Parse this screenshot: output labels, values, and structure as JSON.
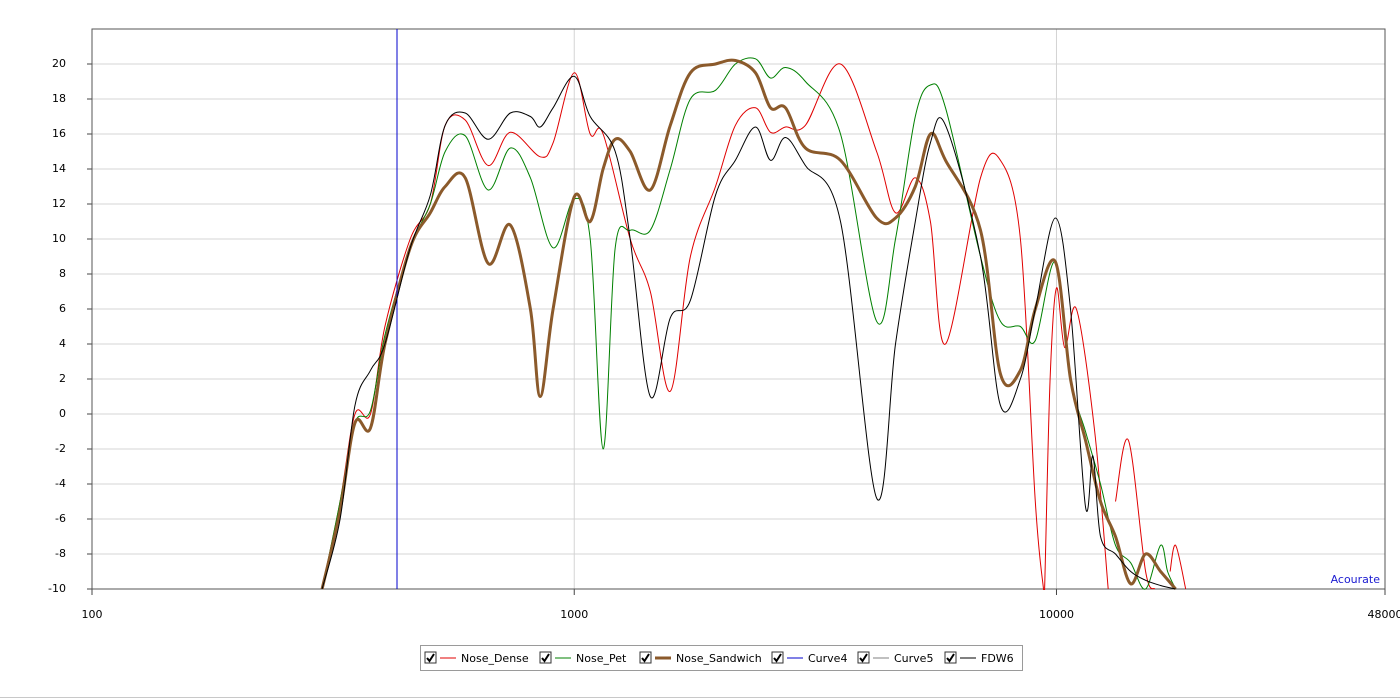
{
  "chart_data": {
    "type": "line",
    "xscale": "log",
    "grid": true,
    "legend": "bottom",
    "annotation": "Acourate",
    "xlim": [
      100,
      48000
    ],
    "ylim": [
      -10,
      22
    ],
    "xticks": [
      100,
      1000,
      10000,
      48000
    ],
    "yticks": [
      -10,
      -8,
      -6,
      -4,
      -2,
      0,
      2,
      4,
      6,
      8,
      10,
      12,
      14,
      16,
      18,
      20
    ],
    "series": [
      {
        "name": "Nose_Dense",
        "color": "#e00000",
        "width": 1,
        "x": [
          300,
          327,
          351,
          378,
          405,
          457,
          503,
          540,
          594,
          663,
          737,
          850,
          904,
          1000,
          1079,
          1148,
          1306,
          1438,
          1582,
          1741,
          1963,
          2159,
          2376,
          2553,
          2742,
          3015,
          3565,
          4236,
          4637,
          5097,
          5477,
          5888,
          6957,
          7650,
          8418,
          9038,
          9400,
          9450,
          9700,
          10000,
          10400,
          11000,
          12000,
          12800,
          13000,
          13253,
          14100,
          15302,
          16000,
          16800,
          17200,
          17660,
          18530
        ],
        "values": [
          -10,
          -5,
          0,
          0,
          5,
          10,
          12,
          16.5,
          16.8,
          14.2,
          16.1,
          14.7,
          15.5,
          19.5,
          16,
          16,
          10,
          7,
          1.3,
          9,
          13,
          16.5,
          17.5,
          16.1,
          16.4,
          16.5,
          20,
          15,
          11.5,
          13.5,
          11,
          4,
          13.5,
          14.5,
          10,
          -5,
          -10,
          -10,
          2,
          7.2,
          3.8,
          6,
          -1,
          -10,
          null,
          -5,
          -1.5,
          -9,
          -10,
          null,
          -9,
          -7.5,
          -10
        ]
      },
      {
        "name": "Nose_Pet",
        "color": "#008000",
        "width": 1,
        "x": [
          300,
          327,
          351,
          378,
          405,
          457,
          503,
          540,
          594,
          663,
          737,
          811,
          904,
          1000,
          1079,
          1148,
          1216,
          1306,
          1438,
          1582,
          1741,
          1963,
          2159,
          2376,
          2553,
          2742,
          3015,
          3565,
          4236,
          4637,
          5097,
          5477,
          5888,
          6957,
          7650,
          8418,
          9038,
          9951,
          10691,
          11487,
          12340,
          13253,
          14250,
          15302,
          16441,
          17000,
          17660
        ],
        "values": [
          -10,
          -5,
          -0.5,
          0.2,
          4.5,
          9.5,
          12,
          15,
          15.9,
          12.8,
          15.2,
          13.5,
          9.5,
          12.3,
          10,
          -2,
          9.5,
          10.5,
          10.5,
          14,
          18,
          18.5,
          20,
          20.3,
          19.2,
          19.8,
          19,
          16,
          5.3,
          10,
          17,
          18.8,
          17.5,
          9,
          5.3,
          5,
          4.2,
          8.7,
          2,
          -1,
          -4,
          -7.5,
          -8.5,
          -10,
          -7.5,
          -9,
          -10
        ]
      },
      {
        "name": "Nose_Sandwich",
        "color": "#8b5a2b",
        "width": 3,
        "x": [
          300,
          327,
          351,
          378,
          405,
          457,
          503,
          540,
          594,
          663,
          737,
          811,
          850,
          904,
          1000,
          1079,
          1148,
          1216,
          1306,
          1438,
          1582,
          1741,
          1963,
          2159,
          2376,
          2553,
          2742,
          3015,
          3565,
          4236,
          4637,
          5097,
          5477,
          5888,
          6957,
          7650,
          8418,
          9038,
          9951,
          10691,
          11487,
          12340,
          13253,
          14250,
          15302,
          16441,
          17660
        ],
        "values": [
          -10,
          -5.5,
          -0.5,
          -0.8,
          4,
          9.5,
          11.5,
          13,
          13.5,
          8.6,
          10.8,
          6,
          1,
          6,
          12.4,
          11,
          14,
          15.7,
          15,
          12.8,
          16.5,
          19.5,
          20,
          20.2,
          19.5,
          17.5,
          17.5,
          15.2,
          14.5,
          11.2,
          11.2,
          13,
          16,
          14.5,
          10.5,
          2.3,
          2.5,
          6,
          8.7,
          2,
          -1.5,
          -5,
          -7,
          -9.7,
          -8,
          -9,
          -10
        ]
      },
      {
        "name": "Curve4",
        "color": "#0000cc",
        "width": 1,
        "x": [
          429,
          429
        ],
        "values": [
          -10,
          22
        ]
      },
      {
        "name": "Curve5",
        "color": "#808080",
        "width": 1,
        "x": [],
        "values": []
      },
      {
        "name": "FDW6",
        "color": "#000000",
        "width": 1,
        "x": [
          300,
          327,
          351,
          378,
          405,
          457,
          503,
          540,
          594,
          663,
          737,
          811,
          850,
          904,
          1000,
          1079,
          1216,
          1306,
          1438,
          1582,
          1741,
          1963,
          2159,
          2376,
          2553,
          2742,
          3015,
          3565,
          4236,
          4637,
          5097,
          5477,
          5888,
          6957,
          7650,
          8418,
          9038,
          9951,
          10691,
          11487,
          11900,
          12340,
          13253,
          14250,
          15302,
          16441,
          17660
        ],
        "values": [
          -10,
          -6,
          0.5,
          2.5,
          4,
          9.5,
          12.5,
          16.5,
          17.2,
          15.7,
          17.2,
          17,
          16.4,
          17.5,
          19.3,
          17,
          15,
          10,
          1,
          5.5,
          6.5,
          12.5,
          14.5,
          16.4,
          14.5,
          15.8,
          14.2,
          11,
          -4.8,
          4,
          11,
          15.5,
          16.5,
          9,
          0.5,
          2,
          6,
          11.2,
          6,
          -5.3,
          -2.4,
          -7,
          -8,
          -9,
          -9.5,
          -9.8,
          -10
        ]
      }
    ]
  }
}
